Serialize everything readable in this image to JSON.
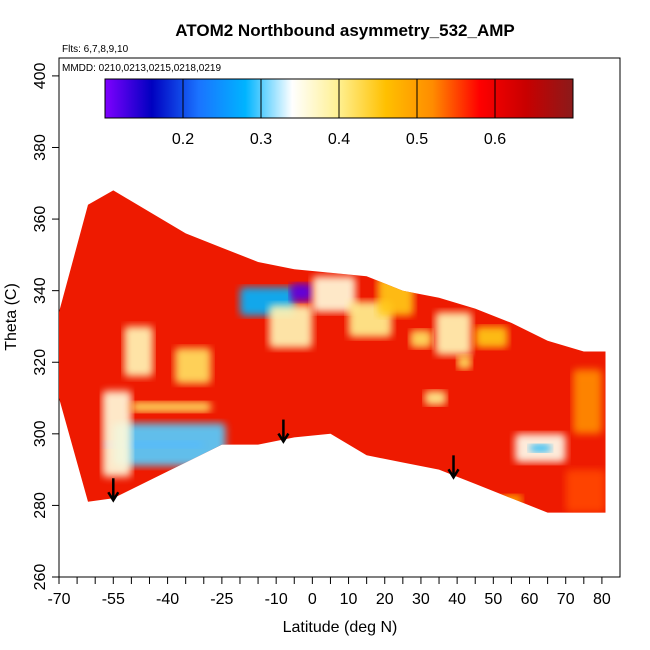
{
  "chart_data": {
    "type": "heatmap",
    "title": "ATOM2 Northbound asymmetry_532_AMP",
    "flights_label": "Flts: 6,7,8,9,10",
    "dates_label": "MMDD: 0210,0213,0215,0218,0219",
    "xlabel": "Latitude (deg N)",
    "ylabel": "Theta (C)",
    "xlim": [
      -70,
      85
    ],
    "ylim": [
      260,
      405
    ],
    "x_ticks": [
      -70,
      -55,
      -40,
      -25,
      -10,
      0,
      10,
      20,
      30,
      40,
      50,
      60,
      70,
      80
    ],
    "x_minor_ticks": [
      -65,
      -60,
      -50,
      -45,
      -35,
      -30,
      -20,
      -15,
      -5,
      5,
      15,
      25,
      35,
      45,
      55,
      65,
      75
    ],
    "y_ticks": [
      260,
      280,
      300,
      320,
      340,
      360,
      380,
      400
    ],
    "colorbar": {
      "ticks": [
        0.2,
        0.3,
        0.4,
        0.5,
        0.6
      ],
      "range": [
        0.1,
        0.7
      ],
      "colors": [
        "#7f00ff",
        "#0000c0",
        "#1a73ff",
        "#00b4ff",
        "#ffffff",
        "#fff090",
        "#ffc000",
        "#ff8c00",
        "#ff0000",
        "#c80000",
        "#8b1a1a"
      ]
    },
    "markers": [
      -55,
      -8,
      39
    ],
    "data_extent": {
      "lat": [
        -70,
        -62,
        -55,
        -45,
        -35,
        -25,
        -15,
        -5,
        5,
        15,
        25,
        35,
        45,
        55,
        65,
        75,
        81
      ],
      "theta_top": [
        334,
        364,
        368,
        362,
        356,
        352,
        348,
        346,
        345,
        344,
        340,
        338,
        335,
        331,
        326,
        323,
        323
      ],
      "theta_bottom": [
        310,
        281,
        282,
        287,
        292,
        297,
        297,
        299,
        300,
        294,
        292,
        290,
        286,
        282,
        278,
        278,
        278
      ]
    },
    "regions": [
      {
        "lat": [
          -57,
          -30
        ],
        "theta": [
          296,
          298
        ],
        "value": 0.12
      },
      {
        "lat": [
          -55,
          -24
        ],
        "theta": [
          291,
          303
        ],
        "value": 0.3
      },
      {
        "lat": [
          -58,
          -50
        ],
        "theta": [
          288,
          312
        ],
        "value": 0.36
      },
      {
        "lat": [
          -50,
          -28
        ],
        "theta": [
          306,
          309
        ],
        "value": 0.42
      },
      {
        "lat": [
          -52,
          -44
        ],
        "theta": [
          316,
          330
        ],
        "value": 0.38
      },
      {
        "lat": [
          -38,
          -28
        ],
        "theta": [
          314,
          324
        ],
        "value": 0.42
      },
      {
        "lat": [
          -20,
          -5
        ],
        "theta": [
          333,
          341
        ],
        "value": 0.28
      },
      {
        "lat": [
          -12,
          0
        ],
        "theta": [
          324,
          336
        ],
        "value": 0.38
      },
      {
        "lat": [
          -6,
          0
        ],
        "theta": [
          337,
          342
        ],
        "value": 0.12
      },
      {
        "lat": [
          0,
          12
        ],
        "theta": [
          334,
          344
        ],
        "value": 0.36
      },
      {
        "lat": [
          10,
          22
        ],
        "theta": [
          327,
          337
        ],
        "value": 0.4
      },
      {
        "lat": [
          18,
          28
        ],
        "theta": [
          333,
          344
        ],
        "value": 0.45
      },
      {
        "lat": [
          27,
          33
        ],
        "theta": [
          324,
          329
        ],
        "value": 0.42
      },
      {
        "lat": [
          34,
          44
        ],
        "theta": [
          322,
          334
        ],
        "value": 0.38
      },
      {
        "lat": [
          45,
          54
        ],
        "theta": [
          324,
          330
        ],
        "value": 0.45
      },
      {
        "lat": [
          31,
          37
        ],
        "theta": [
          308,
          312
        ],
        "value": 0.4
      },
      {
        "lat": [
          40,
          44
        ],
        "theta": [
          318,
          322
        ],
        "value": 0.42
      },
      {
        "lat": [
          56,
          70
        ],
        "theta": [
          292,
          300
        ],
        "value": 0.35
      },
      {
        "lat": [
          60,
          66
        ],
        "theta": [
          295,
          297
        ],
        "value": 0.28
      },
      {
        "lat": [
          52,
          58
        ],
        "theta": [
          280,
          283
        ],
        "value": 0.48
      },
      {
        "lat": [
          70,
          81
        ],
        "theta": [
          278,
          290
        ],
        "value": 0.55
      },
      {
        "lat": [
          72,
          80
        ],
        "theta": [
          300,
          318
        ],
        "value": 0.52
      }
    ]
  }
}
